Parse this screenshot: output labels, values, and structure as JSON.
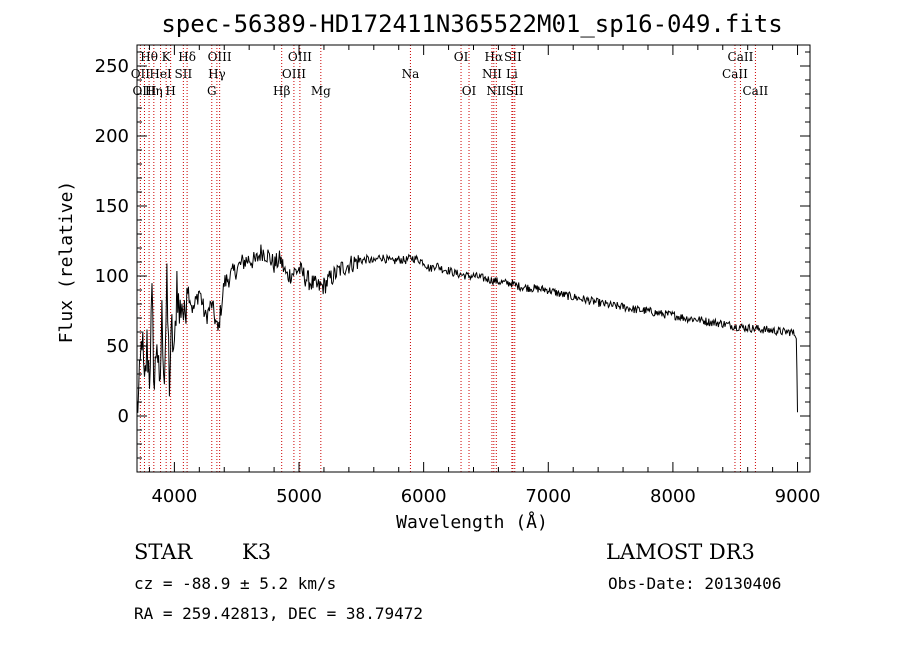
{
  "chart_data": {
    "type": "line",
    "title": "spec-56389-HD172411N365522M01_sp16-049.fits",
    "xlabel": "Wavelength (Å)",
    "ylabel": "Flux (relative)",
    "xlim": [
      3700,
      9100
    ],
    "ylim": [
      -40,
      265
    ],
    "xticks": [
      4000,
      5000,
      6000,
      7000,
      8000,
      9000
    ],
    "yticks": [
      0,
      50,
      100,
      150,
      200,
      250
    ],
    "series": [
      {
        "name": "flux",
        "x": [
          3700,
          3720,
          3740,
          3760,
          3780,
          3800,
          3820,
          3840,
          3860,
          3880,
          3900,
          3920,
          3940,
          3960,
          3980,
          4000,
          4020,
          4040,
          4060,
          4080,
          4100,
          4150,
          4200,
          4250,
          4300,
          4350,
          4400,
          4450,
          4500,
          4550,
          4600,
          4650,
          4700,
          4750,
          4800,
          4850,
          4900,
          4950,
          5000,
          5050,
          5100,
          5150,
          5200,
          5250,
          5300,
          5350,
          5400,
          5450,
          5500,
          5550,
          5600,
          5650,
          5700,
          5750,
          5800,
          5850,
          5900,
          5950,
          6000,
          6050,
          6100,
          6150,
          6200,
          6250,
          6300,
          6350,
          6400,
          6450,
          6500,
          6550,
          6600,
          6650,
          6700,
          6750,
          6800,
          6900,
          7000,
          7100,
          7200,
          7300,
          7400,
          7500,
          7600,
          7700,
          7800,
          7900,
          8000,
          8100,
          8200,
          8300,
          8400,
          8500,
          8600,
          8700,
          8800,
          8900,
          8950,
          8990,
          9000
        ],
        "values": [
          5,
          20,
          60,
          15,
          50,
          30,
          80,
          20,
          60,
          10,
          70,
          30,
          90,
          25,
          60,
          40,
          100,
          70,
          85,
          65,
          95,
          75,
          90,
          70,
          80,
          60,
          95,
          100,
          105,
          110,
          112,
          110,
          118,
          115,
          108,
          112,
          100,
          102,
          105,
          99,
          95,
          92,
          93,
          98,
          102,
          106,
          108,
          110,
          111,
          112,
          110,
          114,
          112,
          110,
          112,
          111,
          113,
          112,
          110,
          105,
          108,
          105,
          104,
          102,
          101,
          100,
          100,
          99,
          98,
          97,
          96,
          95,
          95,
          93,
          92,
          91,
          90,
          87,
          85,
          83,
          81,
          79,
          78,
          76,
          75,
          73,
          72,
          70,
          69,
          67,
          66,
          64,
          63,
          62,
          61,
          60,
          60,
          58,
          5
        ]
      }
    ],
    "lines": [
      {
        "label": "Hθ",
        "x": 3797,
        "row": 1
      },
      {
        "label": "OII",
        "x": 3727,
        "row": 2
      },
      {
        "label": "OIII",
        "x": 3760,
        "row": 3
      },
      {
        "label": "K",
        "x": 3934,
        "row": 1
      },
      {
        "label": "HeI",
        "x": 3889,
        "row": 2
      },
      {
        "label": "Hη",
        "x": 3835,
        "row": 3
      },
      {
        "label": "SII",
        "x": 4072,
        "row": 2
      },
      {
        "label": "H",
        "x": 3970,
        "row": 3
      },
      {
        "label": "Hδ",
        "x": 4102,
        "row": 1
      },
      {
        "label": "OIII",
        "x": 4363,
        "row": 1
      },
      {
        "label": "Hγ",
        "x": 4341,
        "row": 2
      },
      {
        "label": "G",
        "x": 4300,
        "row": 3
      },
      {
        "label": "OIII",
        "x": 5007,
        "row": 1
      },
      {
        "label": "OIII",
        "x": 4959,
        "row": 2
      },
      {
        "label": "Hβ",
        "x": 4861,
        "row": 3
      },
      {
        "label": "Mg",
        "x": 5175,
        "row": 3
      },
      {
        "label": "Na",
        "x": 5894,
        "row": 2
      },
      {
        "label": "OI",
        "x": 6300,
        "row": 1
      },
      {
        "label": "OI",
        "x": 6364,
        "row": 3
      },
      {
        "label": "Hα",
        "x": 6563,
        "row": 1
      },
      {
        "label": "SII",
        "x": 6716,
        "row": 1
      },
      {
        "label": "NII",
        "x": 6548,
        "row": 2
      },
      {
        "label": "Li",
        "x": 6708,
        "row": 2
      },
      {
        "label": "NII",
        "x": 6583,
        "row": 3
      },
      {
        "label": "SII",
        "x": 6731,
        "row": 3
      },
      {
        "label": "CaII",
        "x": 8542,
        "row": 1
      },
      {
        "label": "CaII",
        "x": 8498,
        "row": 2
      },
      {
        "label": "CaII",
        "x": 8662,
        "row": 3
      }
    ]
  },
  "info": {
    "class_label": "STAR",
    "subclass": "K3",
    "survey": "LAMOST DR3",
    "cz": "cz = -88.9 ± 5.2 km/s",
    "obs_date": "Obs-Date: 20130406",
    "coords": "RA = 259.42813, DEC =  38.79472"
  }
}
